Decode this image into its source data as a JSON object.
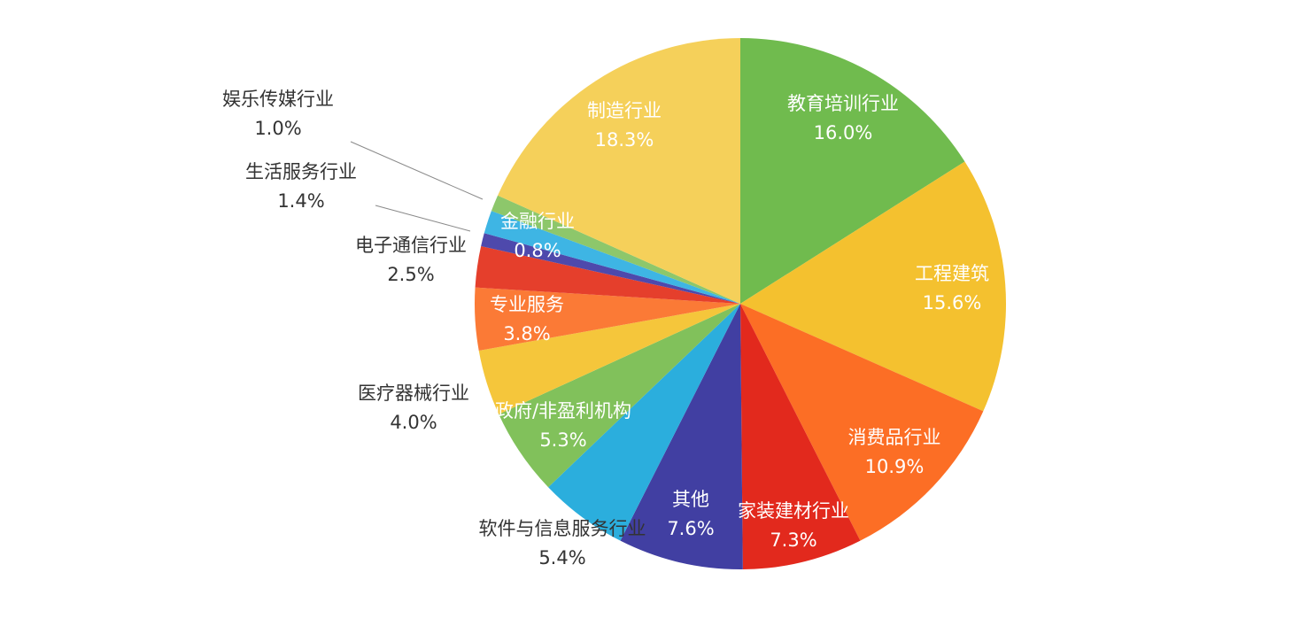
{
  "chart_data": {
    "type": "pie",
    "title": "",
    "start_angle_deg": 0,
    "direction": "clockwise",
    "slices": [
      {
        "name": "教育培训行业",
        "value": 16.0,
        "label": "16.0%",
        "color": "#70BB4E",
        "label_color": "#ffffff",
        "label_pos": "inside"
      },
      {
        "name": "工程建筑",
        "value": 15.6,
        "label": "15.6%",
        "color": "#F4C12F",
        "label_color": "#ffffff",
        "label_pos": "inside"
      },
      {
        "name": "消费品行业",
        "value": 10.9,
        "label": "10.9%",
        "color": "#FC6E25",
        "label_color": "#ffffff",
        "label_pos": "inside"
      },
      {
        "name": "家装建材行业",
        "value": 7.3,
        "label": "7.3%",
        "color": "#E2291D",
        "label_color": "#ffffff",
        "label_pos": "inside"
      },
      {
        "name": "其他",
        "value": 7.6,
        "label": "7.6%",
        "color": "#413FA2",
        "label_color": "#ffffff",
        "label_pos": "inside"
      },
      {
        "name": "软件与信息服务行业",
        "value": 5.4,
        "label": "5.4%",
        "color": "#2BAEDD",
        "label_color": "#333333",
        "label_pos": "outside"
      },
      {
        "name": "政府/非盈利机构",
        "value": 5.3,
        "label": "5.3%",
        "color": "#81C15B",
        "label_color": "#ffffff",
        "label_pos": "inside"
      },
      {
        "name": "医疗器械行业",
        "value": 4.0,
        "label": "4.0%",
        "color": "#F5C63B",
        "label_color": "#333333",
        "label_pos": "outside"
      },
      {
        "name": "专业服务",
        "value": 3.8,
        "label": "3.8%",
        "color": "#FB7A36",
        "label_color": "#ffffff",
        "label_pos": "inside"
      },
      {
        "name": "电子通信行业",
        "value": 2.5,
        "label": "2.5%",
        "color": "#E53F2C",
        "label_color": "#333333",
        "label_pos": "outside"
      },
      {
        "name": "金融行业",
        "value": 0.8,
        "label": "0.8%",
        "color": "#4E49AC",
        "label_color": "#ffffff",
        "label_pos": "inside"
      },
      {
        "name": "生活服务行业",
        "value": 1.4,
        "label": "1.4%",
        "color": "#3EB5E4",
        "label_color": "#333333",
        "label_pos": "outside"
      },
      {
        "name": "娱乐传媒行业",
        "value": 1.0,
        "label": "1.0%",
        "color": "#8DC76B",
        "label_color": "#333333",
        "label_pos": "outside"
      },
      {
        "name": "制造行业",
        "value": 18.3,
        "label": "18.3%",
        "color": "#F5D05A",
        "label_color": "#ffffff",
        "label_pos": "inside"
      }
    ]
  }
}
